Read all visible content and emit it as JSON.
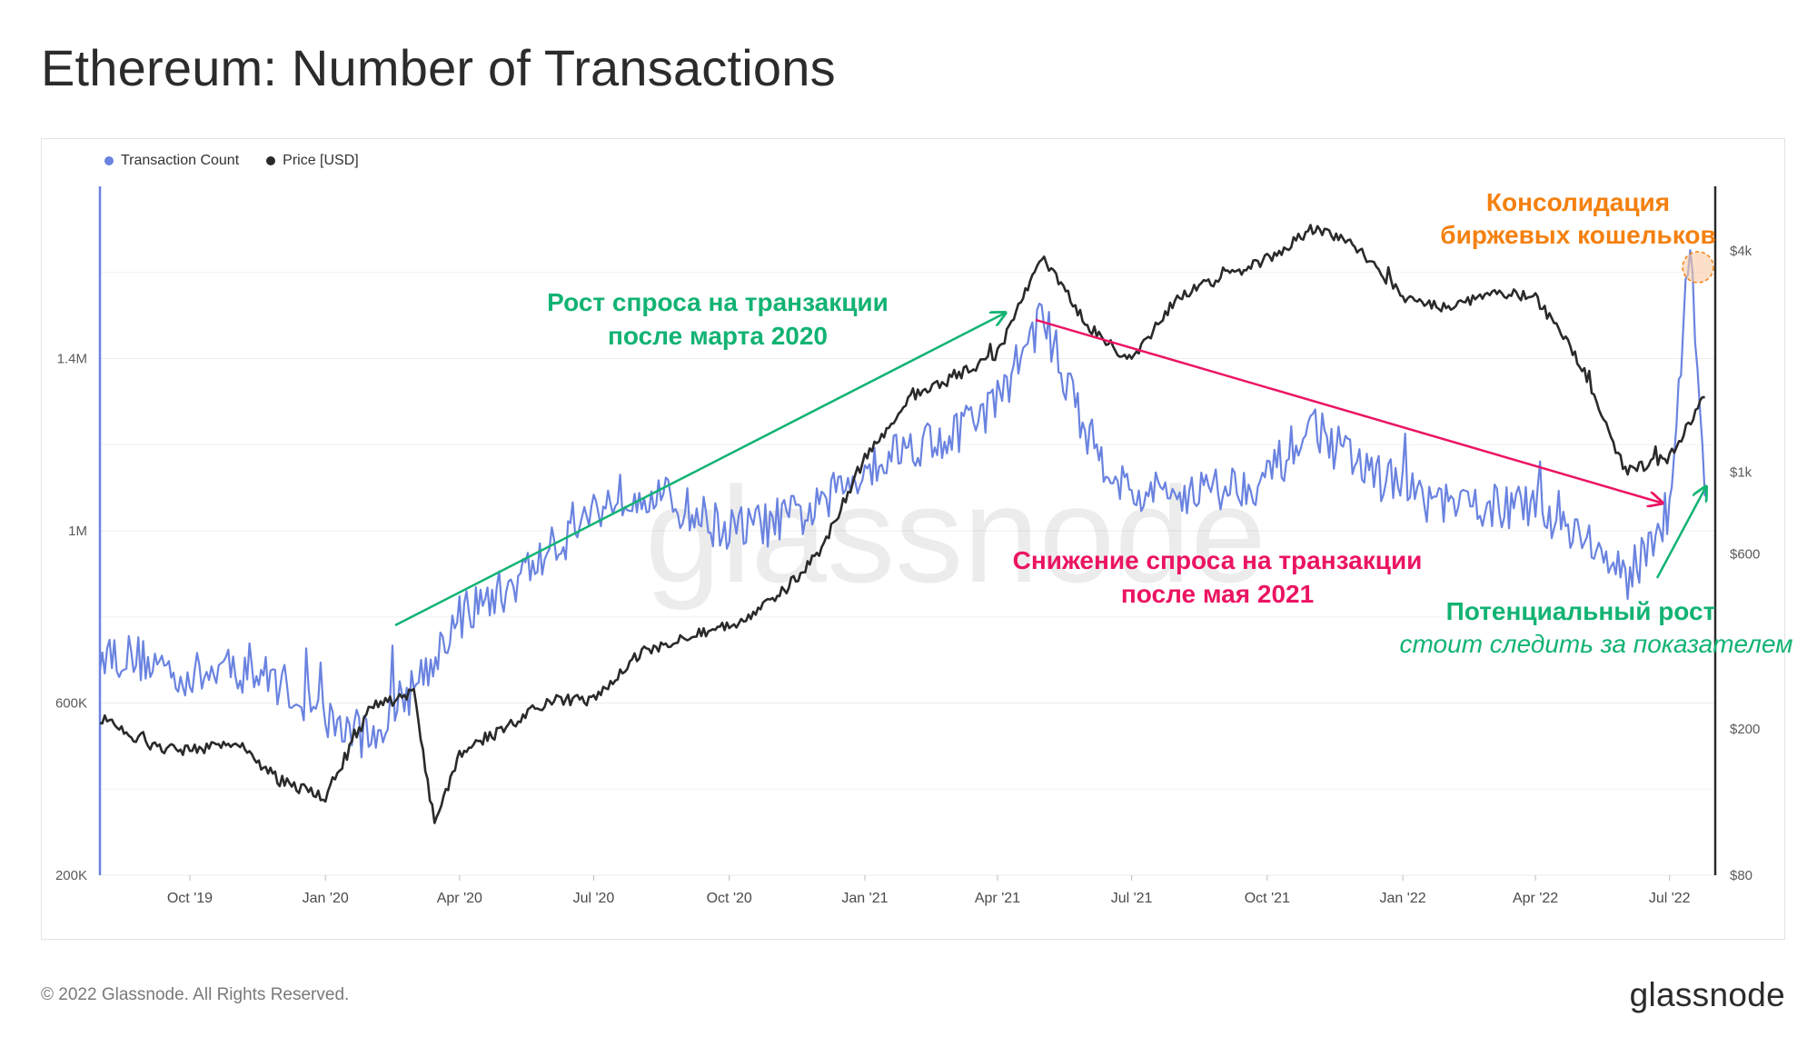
{
  "title": "Ethereum: Number of Transactions",
  "footer": {
    "copyright": "© 2022 Glassnode. All Rights Reserved.",
    "logo": "glassnode"
  },
  "watermark": "glassnode",
  "colors": {
    "tx": "#6a83e0",
    "price": "#2a2a2a",
    "green": "#12b373",
    "red": "#eb1463",
    "orange": "#f4800f"
  },
  "legend": [
    {
      "label": "Transaction Count",
      "color": "#6a83e0"
    },
    {
      "label": "Price [USD]",
      "color": "#2a2a2a"
    }
  ],
  "annotations": {
    "rise_line1": "Рост спроса на транзакции",
    "rise_line2": "после марта 2020",
    "drop_line1": "Снижение спроса на транзакции",
    "drop_line2": "после мая 2021",
    "potential_line1": "Потенциальный рост",
    "potential_line2": "стоит следить за показателем",
    "consolidation_line1": "Консолидация",
    "consolidation_line2": "биржевых кошельков"
  },
  "chart_data": {
    "type": "line",
    "title": "Ethereum: Number of Transactions",
    "x_range": [
      "2019-08-01",
      "2022-08-01"
    ],
    "x_ticks": [
      "Oct '19",
      "Jan '20",
      "Apr '20",
      "Jul '20",
      "Oct '20",
      "Jan '21",
      "Apr '21",
      "Jul '21",
      "Oct '21",
      "Jan '22",
      "Apr '22",
      "Jul '22"
    ],
    "y_left": {
      "label": "Transaction Count",
      "range": [
        200000,
        1800000
      ],
      "ticks": [
        "200K",
        "600K",
        "1M",
        "1.4M"
      ]
    },
    "y_right": {
      "label": "Price [USD]",
      "scale": "log",
      "range": [
        80,
        6000
      ],
      "ticks": [
        "$80",
        "$200",
        "$600",
        "$1k",
        "$4k"
      ]
    },
    "series": [
      {
        "name": "Transaction Count",
        "axis": "left",
        "x": [
          "2019-08-01",
          "2019-09-01",
          "2019-10-01",
          "2019-11-01",
          "2019-12-01",
          "2020-01-01",
          "2020-02-01",
          "2020-03-01",
          "2020-04-01",
          "2020-05-01",
          "2020-06-01",
          "2020-07-01",
          "2020-08-01",
          "2020-09-01",
          "2020-10-01",
          "2020-11-01",
          "2020-12-01",
          "2021-01-01",
          "2021-02-01",
          "2021-03-01",
          "2021-04-01",
          "2021-05-01",
          "2021-06-01",
          "2021-07-01",
          "2021-08-01",
          "2021-09-01",
          "2021-10-01",
          "2021-11-01",
          "2021-12-01",
          "2022-01-01",
          "2022-02-01",
          "2022-03-01",
          "2022-04-01",
          "2022-05-01",
          "2022-06-01",
          "2022-07-01",
          "2022-07-15",
          "2022-07-25"
        ],
        "values": [
          720000,
          700000,
          660000,
          680000,
          650000,
          560000,
          520000,
          640000,
          800000,
          860000,
          950000,
          1050000,
          1100000,
          1050000,
          1000000,
          1020000,
          1050000,
          1150000,
          1200000,
          1220000,
          1300000,
          1500000,
          1220000,
          1080000,
          1090000,
          1100000,
          1120000,
          1250000,
          1150000,
          1100000,
          1050000,
          1060000,
          1050000,
          1000000,
          880000,
          1050000,
          1680000,
          1080000
        ]
      },
      {
        "name": "Price [USD]",
        "axis": "right",
        "x": [
          "2019-08-01",
          "2019-09-01",
          "2019-10-01",
          "2019-11-01",
          "2019-12-01",
          "2020-01-01",
          "2020-02-01",
          "2020-03-01",
          "2020-03-15",
          "2020-04-01",
          "2020-05-01",
          "2020-06-01",
          "2020-07-01",
          "2020-08-01",
          "2020-09-01",
          "2020-10-01",
          "2020-11-01",
          "2020-12-01",
          "2021-01-01",
          "2021-02-01",
          "2021-03-01",
          "2021-04-01",
          "2021-05-01",
          "2021-06-01",
          "2021-07-01",
          "2021-08-01",
          "2021-09-01",
          "2021-10-01",
          "2021-11-01",
          "2021-12-01",
          "2022-01-01",
          "2022-02-01",
          "2022-03-01",
          "2022-04-01",
          "2022-05-01",
          "2022-06-01",
          "2022-07-01",
          "2022-07-25"
        ],
        "values": [
          215,
          180,
          175,
          185,
          145,
          130,
          230,
          250,
          110,
          170,
          200,
          240,
          240,
          320,
          360,
          380,
          450,
          600,
          1100,
          1600,
          1800,
          2100,
          3900,
          2500,
          2000,
          3000,
          3400,
          3800,
          4600,
          4100,
          3000,
          2800,
          3100,
          3000,
          2000,
          1000,
          1100,
          1600
        ]
      }
    ]
  }
}
